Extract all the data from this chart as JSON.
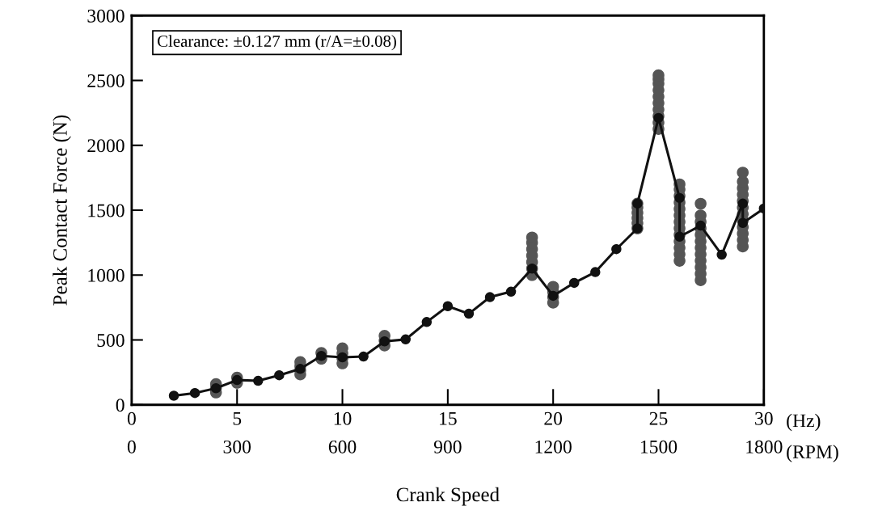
{
  "chart_data": {
    "type": "line",
    "xlabel": "Crank Speed",
    "ylabel": "Peak Contact Force (N)",
    "annotations": [
      "Clearance: ±0.127 mm (r/A=±0.08)",
      "(Hz)",
      "(RPM)"
    ],
    "xlim": [
      0,
      30
    ],
    "xticks": [
      0,
      5,
      10,
      15,
      20,
      25,
      30
    ],
    "x2lim": [
      0,
      1800
    ],
    "x2ticks": [
      0,
      300,
      600,
      900,
      1200,
      1500,
      1800
    ],
    "ylim": [
      0,
      3000
    ],
    "yticks": [
      0,
      500,
      1000,
      1500,
      2000,
      2500,
      3000
    ],
    "grid": false,
    "legend": false,
    "series": [
      {
        "color": "#111111",
        "marker": "circle",
        "line_style": "solid",
        "x": [
          2,
          3,
          4,
          5,
          6,
          7,
          8,
          9,
          10,
          11,
          12,
          13,
          14,
          15,
          16,
          17,
          18,
          19,
          20,
          21,
          22,
          23,
          24,
          24,
          25,
          26,
          26,
          27,
          28,
          29,
          29,
          30
        ],
        "values": [
          70,
          91,
          128,
          191,
          185,
          228,
          277,
          377,
          366,
          372,
          489,
          504,
          638,
          760,
          702,
          830,
          872,
          1050,
          840,
          940,
          1023,
          1200,
          1360,
          1551,
          2211,
          1594,
          1296,
          1381,
          1157,
          1551,
          1402,
          1513
        ]
      },
      {
        "type": "scatter",
        "color": "#555555",
        "marker": "circle",
        "x": [
          4,
          4,
          4,
          5,
          5,
          8,
          8,
          8,
          8,
          9,
          9,
          10,
          10,
          10,
          10,
          12,
          12,
          12,
          19,
          19,
          19,
          19,
          19,
          19,
          19,
          20,
          20,
          20,
          20,
          24,
          24,
          24,
          24,
          24,
          24,
          25,
          25,
          25,
          25,
          25,
          25,
          25,
          25,
          25,
          25,
          26,
          26,
          26,
          26,
          26,
          26,
          26,
          26,
          26,
          26,
          26,
          26,
          26,
          27,
          27,
          27,
          27,
          27,
          27,
          27,
          27,
          27,
          27,
          27,
          27,
          29,
          29,
          29,
          29,
          29,
          29,
          29,
          29,
          29,
          29,
          29,
          29
        ],
        "values": [
          95,
          128,
          160,
          170,
          210,
          234,
          266,
          298,
          330,
          355,
          400,
          319,
          358,
          397,
          436,
          457,
          495,
          532,
          1000,
          1050,
          1100,
          1150,
          1200,
          1250,
          1290,
          787,
          830,
          870,
          910,
          1360,
          1400,
          1440,
          1480,
          1520,
          1551,
          2125,
          2175,
          2225,
          2275,
          2325,
          2375,
          2425,
          2475,
          2510,
          2540,
          1110,
          1160,
          1210,
          1260,
          1310,
          1360,
          1410,
          1460,
          1510,
          1560,
          1610,
          1660,
          1700,
          960,
          1010,
          1060,
          1110,
          1160,
          1210,
          1260,
          1310,
          1360,
          1410,
          1460,
          1550,
          1220,
          1270,
          1320,
          1370,
          1420,
          1470,
          1520,
          1570,
          1620,
          1670,
          1720,
          1790
        ]
      }
    ]
  }
}
